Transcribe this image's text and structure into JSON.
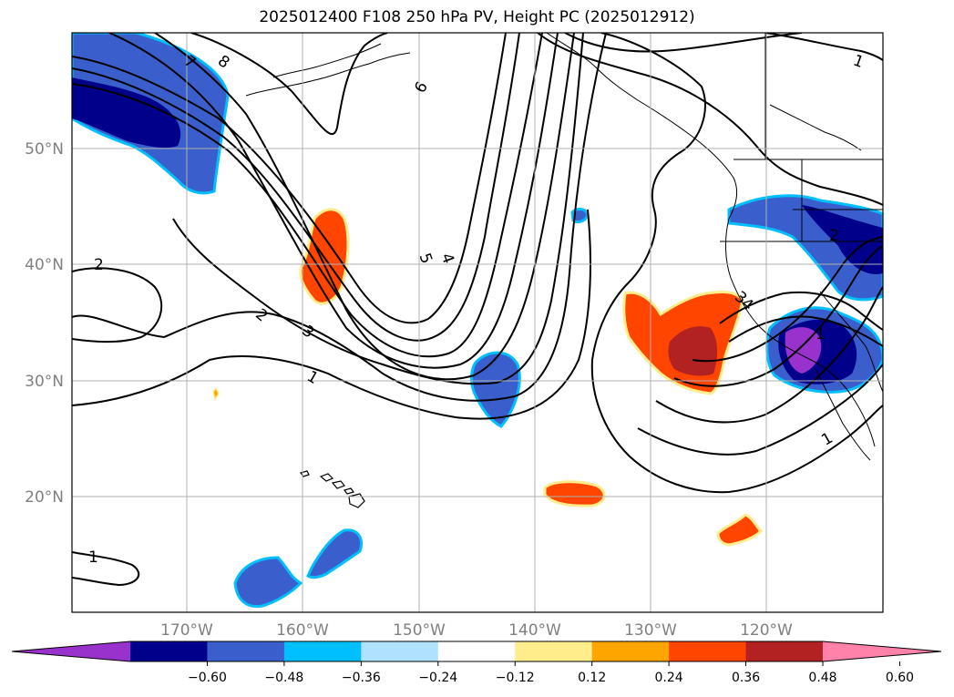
{
  "title": "2025012400 F108 250 hPa PV, Height PC (2025012912)",
  "lat_labels": [
    "50°N",
    "40°N",
    "30°N",
    "20°N"
  ],
  "lon_labels": [
    "170°W",
    "160°W",
    "150°W",
    "140°W",
    "130°W",
    "120°W"
  ],
  "contour_labels": [
    "7",
    "8",
    "6",
    "5",
    "4",
    "2",
    "2",
    "3",
    "1",
    "1",
    "2",
    "1",
    "1",
    "1",
    "3",
    "4"
  ],
  "colorbar": {
    "ticks": [
      "−0.60",
      "−0.48",
      "−0.36",
      "−0.24",
      "−0.12",
      "0.12",
      "0.24",
      "0.36",
      "0.48",
      "0.60"
    ],
    "colors": [
      "#9932CC",
      "#00008B",
      "#3A5FCD",
      "#00BFFF",
      "#B0E2FF",
      "#FFFFFF",
      "#FFEC8B",
      "#FFA500",
      "#FF4500",
      "#B22222",
      "#FF82AB"
    ]
  }
}
